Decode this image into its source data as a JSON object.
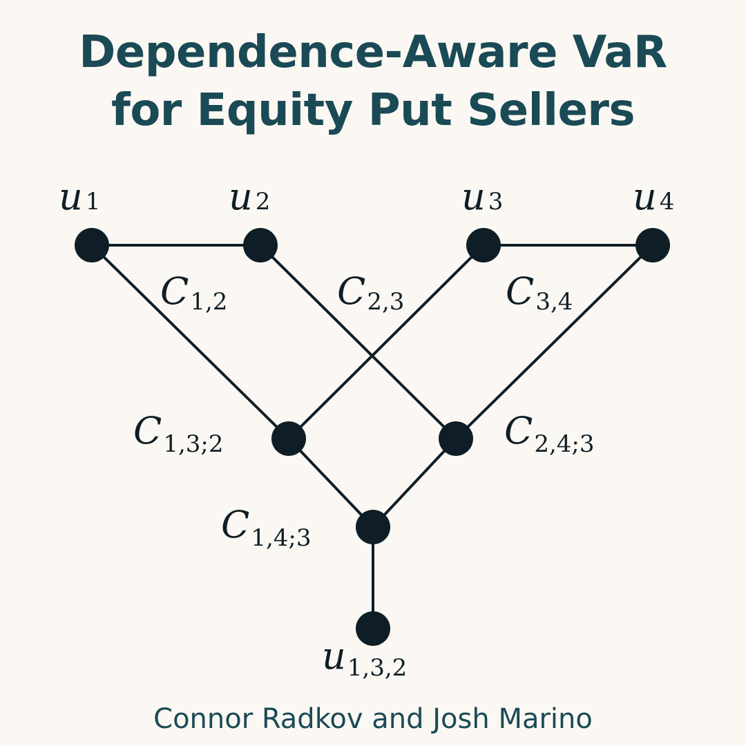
{
  "title": {
    "line1": "Dependence-Aware VaR",
    "line2": "for Equity Put Sellers"
  },
  "authors": "Connor Radkov and Josh Marino",
  "diagram": {
    "nodes": {
      "u1": {
        "main": "u",
        "sub": "1"
      },
      "u2": {
        "main": "u",
        "sub": "2"
      },
      "u3": {
        "main": "u",
        "sub": "3"
      },
      "u4": {
        "main": "u",
        "sub": "4"
      },
      "c132": {
        "main": "C",
        "sub": "1,3;2"
      },
      "c243": {
        "main": "C",
        "sub": "2,4;3"
      },
      "c143": {
        "main": "C",
        "sub": "1,4;3"
      },
      "u132": {
        "main": "u",
        "sub": "1,3,2"
      }
    },
    "edge_labels": {
      "c12": {
        "main": "C",
        "sub": "1,2"
      },
      "c23": {
        "main": "C",
        "sub": "2,3"
      },
      "c34": {
        "main": "C",
        "sub": "3,4"
      }
    }
  }
}
